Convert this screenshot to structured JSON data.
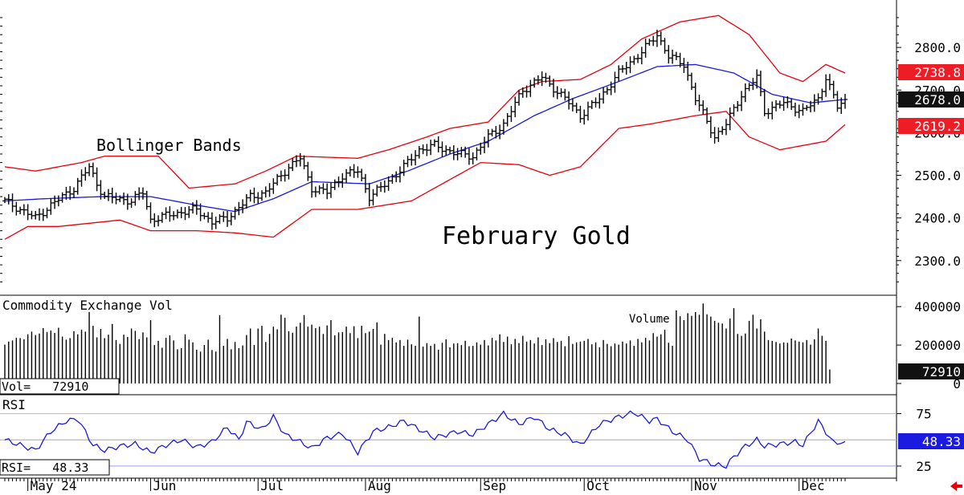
{
  "chart_data": {
    "type": "ohlc",
    "title": "February Gold",
    "annotation": "Bollinger Bands",
    "x_labels": [
      "May 24",
      "Jun",
      "Jul",
      "Aug",
      "Sep",
      "Oct",
      "Nov",
      "Dec"
    ],
    "price": {
      "ylim": [
        2230,
        2900
      ],
      "y_ticks": [
        "2300.0",
        "2400.0",
        "2500.0",
        "2600.0",
        "2700.0",
        "2800.0"
      ],
      "tags": {
        "upper": "2738.8",
        "close": "2678.0",
        "lower": "2619.2"
      },
      "anchors": [
        [
          0,
          2440
        ],
        [
          8,
          2400
        ],
        [
          12,
          2430
        ],
        [
          18,
          2470
        ],
        [
          22,
          2520
        ],
        [
          24,
          2480
        ],
        [
          26,
          2450
        ],
        [
          33,
          2440
        ],
        [
          36,
          2460
        ],
        [
          38,
          2395
        ],
        [
          44,
          2410
        ],
        [
          50,
          2420
        ],
        [
          54,
          2390
        ],
        [
          58,
          2400
        ],
        [
          64,
          2450
        ],
        [
          68,
          2460
        ],
        [
          74,
          2520
        ],
        [
          77,
          2540
        ],
        [
          80,
          2470
        ],
        [
          84,
          2460
        ],
        [
          88,
          2500
        ],
        [
          92,
          2510
        ],
        [
          95,
          2450
        ],
        [
          98,
          2470
        ],
        [
          104,
          2520
        ],
        [
          108,
          2560
        ],
        [
          112,
          2570
        ],
        [
          118,
          2550
        ],
        [
          122,
          2545
        ],
        [
          126,
          2590
        ],
        [
          130,
          2620
        ],
        [
          135,
          2700
        ],
        [
          140,
          2730
        ],
        [
          146,
          2680
        ],
        [
          150,
          2640
        ],
        [
          155,
          2680
        ],
        [
          160,
          2740
        ],
        [
          166,
          2790
        ],
        [
          170,
          2830
        ],
        [
          173,
          2780
        ],
        [
          177,
          2760
        ],
        [
          180,
          2680
        ],
        [
          185,
          2590
        ],
        [
          188,
          2620
        ],
        [
          192,
          2690
        ],
        [
          196,
          2730
        ],
        [
          198,
          2650
        ],
        [
          203,
          2670
        ],
        [
          208,
          2650
        ],
        [
          212,
          2680
        ],
        [
          214,
          2730
        ],
        [
          217,
          2660
        ],
        [
          219,
          2678
        ]
      ],
      "upper_band": [
        [
          0,
          2520
        ],
        [
          8,
          2510
        ],
        [
          20,
          2530
        ],
        [
          26,
          2545
        ],
        [
          40,
          2545
        ],
        [
          48,
          2470
        ],
        [
          60,
          2480
        ],
        [
          68,
          2510
        ],
        [
          76,
          2545
        ],
        [
          92,
          2540
        ],
        [
          100,
          2560
        ],
        [
          110,
          2590
        ],
        [
          116,
          2610
        ],
        [
          126,
          2625
        ],
        [
          134,
          2700
        ],
        [
          140,
          2720
        ],
        [
          150,
          2725
        ],
        [
          158,
          2760
        ],
        [
          166,
          2820
        ],
        [
          176,
          2860
        ],
        [
          186,
          2875
        ],
        [
          194,
          2830
        ],
        [
          202,
          2740
        ],
        [
          208,
          2720
        ],
        [
          214,
          2760
        ],
        [
          219,
          2740
        ]
      ],
      "middle_band": [
        [
          0,
          2440
        ],
        [
          10,
          2445
        ],
        [
          25,
          2450
        ],
        [
          38,
          2450
        ],
        [
          50,
          2430
        ],
        [
          60,
          2415
        ],
        [
          70,
          2445
        ],
        [
          80,
          2485
        ],
        [
          95,
          2480
        ],
        [
          105,
          2510
        ],
        [
          116,
          2550
        ],
        [
          126,
          2580
        ],
        [
          138,
          2640
        ],
        [
          148,
          2680
        ],
        [
          160,
          2720
        ],
        [
          170,
          2755
        ],
        [
          180,
          2760
        ],
        [
          190,
          2740
        ],
        [
          200,
          2690
        ],
        [
          210,
          2670
        ],
        [
          219,
          2678
        ]
      ],
      "lower_band": [
        [
          0,
          2350
        ],
        [
          6,
          2380
        ],
        [
          14,
          2380
        ],
        [
          30,
          2395
        ],
        [
          38,
          2370
        ],
        [
          50,
          2370
        ],
        [
          60,
          2365
        ],
        [
          70,
          2355
        ],
        [
          80,
          2420
        ],
        [
          92,
          2420
        ],
        [
          106,
          2440
        ],
        [
          118,
          2500
        ],
        [
          124,
          2530
        ],
        [
          134,
          2525
        ],
        [
          142,
          2500
        ],
        [
          150,
          2520
        ],
        [
          160,
          2610
        ],
        [
          168,
          2620
        ],
        [
          180,
          2640
        ],
        [
          188,
          2650
        ],
        [
          194,
          2590
        ],
        [
          202,
          2560
        ],
        [
          208,
          2570
        ],
        [
          214,
          2580
        ],
        [
          219,
          2619
        ]
      ]
    },
    "volume": {
      "label": "Commodity Exchange Vol",
      "series_label": "Volume",
      "readout": "Vol=   72910",
      "tag": "72910",
      "ylim": [
        0,
        430000
      ],
      "y_ticks": [
        "0",
        "200000",
        "400000"
      ],
      "values": [
        202000,
        218000,
        224000,
        238000,
        236000,
        230000,
        256000,
        270000,
        252000,
        260000,
        288000,
        268000,
        276000,
        263000,
        290000,
        244000,
        228000,
        236000,
        272000,
        256000,
        280000,
        270000,
        256000,
        300000,
        240000,
        284000,
        236000,
        254000,
        310000,
        226000,
        206000,
        254000,
        242000,
        286000,
        274000,
        231000,
        266000,
        240000,
        220000,
        200000,
        222000,
        186000,
        238000,
        250000,
        224000,
        178000,
        184000,
        256000,
        228000,
        214000,
        176000,
        166000,
        200000,
        228000,
        174000,
        166000,
        242000,
        196000,
        232000,
        178000,
        216000,
        184000,
        198000,
        252000,
        286000,
        200000,
        286000,
        300000,
        216000,
        258000,
        296000,
        282000,
        268000,
        342000,
        272000,
        264000,
        296000,
        316000,
        300000,
        296000,
        306000,
        288000,
        296000,
        258000,
        302000,
        330000,
        250000,
        266000,
        268000,
        296000,
        262000,
        298000,
        236000,
        300000,
        262000,
        270000,
        284000,
        318000,
        202000,
        258000,
        226000,
        238000,
        214000,
        226000,
        196000,
        228000,
        204000,
        196000,
        208000,
        192000,
        210000,
        196000,
        206000,
        176000,
        212000,
        230000,
        188000,
        208000,
        210000,
        200000,
        222000,
        194000,
        196000,
        214000,
        202000,
        226000,
        198000,
        238000,
        224000,
        256000,
        216000,
        244000,
        204000,
        232000,
        210000,
        248000,
        218000,
        226000,
        208000,
        240000,
        200000,
        230000,
        210000,
        236000,
        216000,
        222000,
        194000,
        246000,
        206000,
        214000,
        218000,
        222000,
        232000,
        204000,
        214000,
        188000,
        226000,
        206000,
        194000,
        208000,
        202000,
        218000,
        208000,
        224000,
        196000,
        232000,
        214000,
        238000,
        224000,
        262000,
        244000,
        256000,
        280000,
        212000,
        196000,
        380000,
        350000,
        330000,
        366000,
        352000,
        372000,
        358000,
        374000,
        360000,
        348000,
        326000,
        316000,
        312000,
        286000,
        338000,
        262000,
        258000,
        248000,
        260000,
        326000,
        358000,
        286000,
        334000,
        270000,
        226000,
        222000,
        216000,
        208000,
        214000,
        212000,
        234000,
        224000,
        218000,
        214000,
        226000,
        202000,
        230000,
        286000,
        248000,
        222000,
        72910
      ],
      "spikes": [
        [
          22,
          372000
        ],
        [
          38,
          330000
        ],
        [
          56,
          356000
        ],
        [
          72,
          358000
        ],
        [
          78,
          356000
        ],
        [
          108,
          348000
        ],
        [
          182,
          416000
        ],
        [
          190,
          392000
        ]
      ]
    },
    "rsi": {
      "label": "RSI",
      "readout": "RSI=   48.33",
      "tag": "48.33",
      "ylim": [
        15,
        90
      ],
      "y_ticks": [
        "25",
        "75"
      ],
      "anchors": [
        [
          0,
          50
        ],
        [
          4,
          45
        ],
        [
          8,
          40
        ],
        [
          12,
          58
        ],
        [
          16,
          68
        ],
        [
          19,
          70
        ],
        [
          23,
          45
        ],
        [
          26,
          40
        ],
        [
          30,
          44
        ],
        [
          34,
          46
        ],
        [
          38,
          38
        ],
        [
          42,
          45
        ],
        [
          46,
          50
        ],
        [
          50,
          43
        ],
        [
          54,
          48
        ],
        [
          58,
          62
        ],
        [
          61,
          50
        ],
        [
          63,
          67
        ],
        [
          67,
          60
        ],
        [
          70,
          72
        ],
        [
          73,
          55
        ],
        [
          76,
          50
        ],
        [
          80,
          42
        ],
        [
          84,
          52
        ],
        [
          88,
          56
        ],
        [
          92,
          38
        ],
        [
          96,
          58
        ],
        [
          100,
          62
        ],
        [
          104,
          68
        ],
        [
          108,
          60
        ],
        [
          112,
          52
        ],
        [
          118,
          58
        ],
        [
          122,
          55
        ],
        [
          126,
          65
        ],
        [
          130,
          75
        ],
        [
          134,
          65
        ],
        [
          138,
          72
        ],
        [
          142,
          60
        ],
        [
          146,
          55
        ],
        [
          150,
          45
        ],
        [
          155,
          65
        ],
        [
          160,
          72
        ],
        [
          164,
          76
        ],
        [
          168,
          68
        ],
        [
          170,
          70
        ],
        [
          174,
          58
        ],
        [
          178,
          50
        ],
        [
          181,
          32
        ],
        [
          185,
          26
        ],
        [
          188,
          25
        ],
        [
          190,
          34
        ],
        [
          193,
          44
        ],
        [
          196,
          50
        ],
        [
          198,
          44
        ],
        [
          202,
          46
        ],
        [
          206,
          48
        ],
        [
          208,
          45
        ],
        [
          212,
          68
        ],
        [
          216,
          47
        ],
        [
          219,
          48.33
        ]
      ]
    }
  }
}
